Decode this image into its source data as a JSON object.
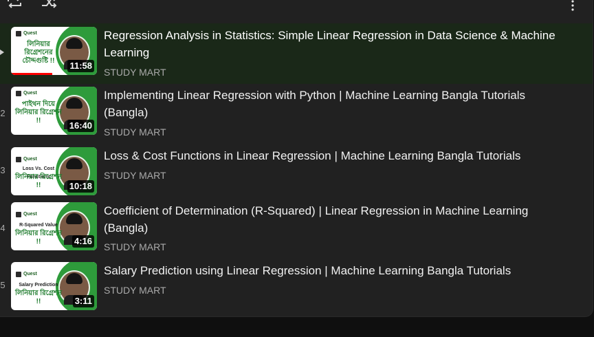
{
  "playlist": {
    "controls": {
      "loop_icon": "loop-icon",
      "shuffle_icon": "shuffle-icon",
      "more_icon": "more-vertical-icon"
    },
    "items": [
      {
        "index": "",
        "title": "Regression Analysis in Statistics: Simple Linear Regression in Data Science & Machine Learning",
        "channel": "STUDY MART",
        "duration": "11:58",
        "thumb_logo": "Quest",
        "thumb_caption": "লিনিয়ার রিগ্রেশনের চৌদ্দগুষ্টি !!",
        "playing": true
      },
      {
        "index": "2",
        "title": "Implementing Linear Regression with Python | Machine Learning Bangla Tutorials (Bangla)",
        "channel": "STUDY MART",
        "duration": "16:40",
        "thumb_logo": "Quest",
        "thumb_caption": "পাইথন দিয়ে লিনিয়ার রিগ্রেশন !!",
        "playing": false
      },
      {
        "index": "3",
        "title": "Loss & Cost Functions in Linear Regression | Machine Learning Bangla Tutorials",
        "channel": "STUDY MART",
        "duration": "10:18",
        "thumb_logo": "Quest",
        "thumb_subcaption": "Loss Vs. Cost Functions",
        "thumb_caption": "লিনিয়ার রিগ্রেশন !!",
        "playing": false
      },
      {
        "index": "4",
        "title": "Coefficient of Determination (R-Squared) | Linear Regression in Machine Learning (Bangla)",
        "channel": "STUDY MART",
        "duration": "4:16",
        "thumb_logo": "Quest",
        "thumb_subcaption": "R-Squared Value",
        "thumb_caption": "লিনিয়ার রিগ্রেশন !!",
        "playing": false
      },
      {
        "index": "5",
        "title": "Salary Prediction using Linear Regression | Machine Learning Bangla Tutorials",
        "channel": "STUDY MART",
        "duration": "3:11",
        "thumb_logo": "Quest",
        "thumb_subcaption": "Salary Prediction",
        "thumb_caption": "লিনিয়ার রিগ্রেশন !!",
        "playing": false
      }
    ]
  },
  "colors": {
    "panel_bg": "#212121",
    "active_row_bg": "#1a2818",
    "title_text": "#f1f1f1",
    "channel_text": "#aaaaaa",
    "thumb_green": "#2e9b3b",
    "progress_red": "#ff0000"
  }
}
